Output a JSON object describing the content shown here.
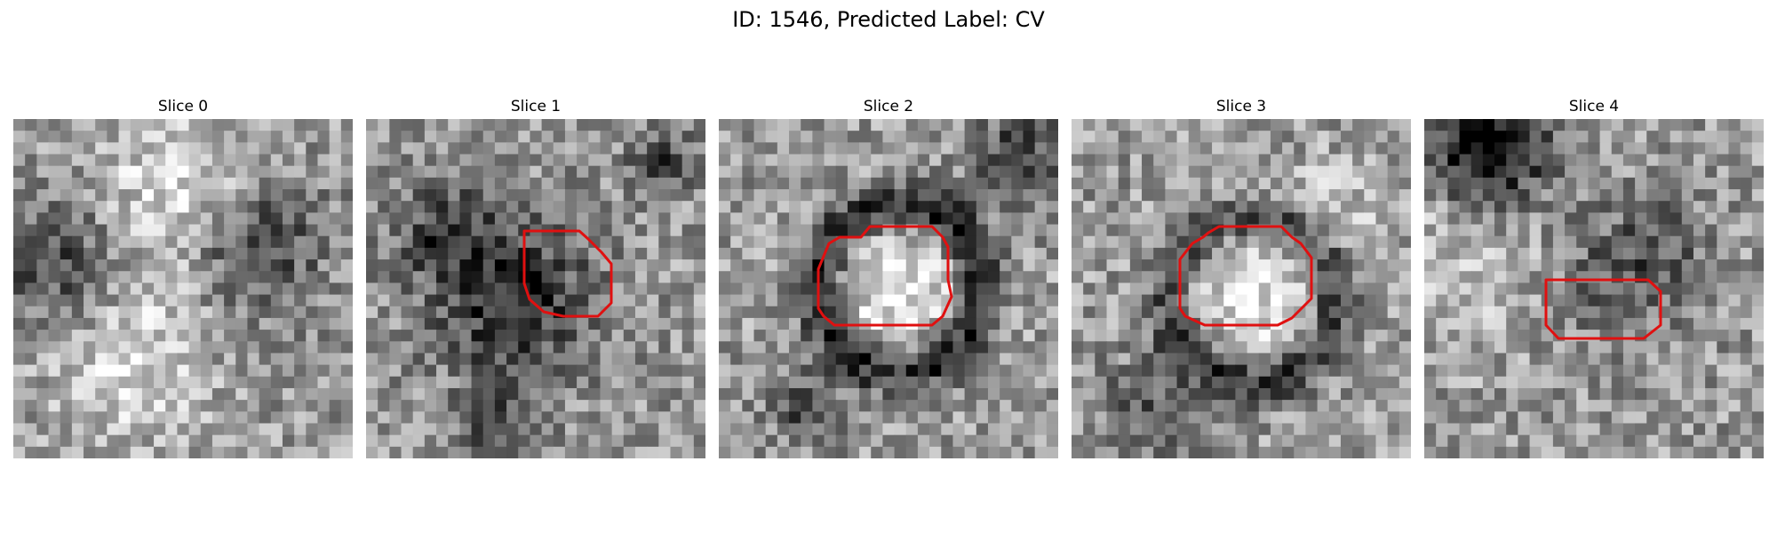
{
  "figure": {
    "title": "ID: 1546, Predicted Label: CV",
    "contour_color": "#e01010",
    "colormap": "grayscale",
    "grid_size": 29
  },
  "panels": [
    {
      "title": "Slice 0",
      "has_contour": false,
      "seed": 11,
      "blobs": []
    },
    {
      "title": "Slice 1",
      "has_contour": true,
      "seed": 23
    },
    {
      "title": "Slice 2",
      "has_contour": true,
      "seed": 37
    },
    {
      "title": "Slice 3",
      "has_contour": true,
      "seed": 41
    },
    {
      "title": "Slice 4",
      "has_contour": true,
      "seed": 53
    }
  ]
}
